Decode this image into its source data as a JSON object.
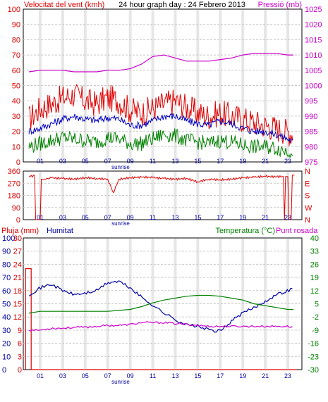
{
  "header": {
    "wind_title": "Velocitat del vent (kmh)",
    "graph_title": "24 hour graph day : 24 Febrero 2013",
    "pressure_title": "Pressió (mb)"
  },
  "colors": {
    "wind": "#e00000",
    "wind_avg": "#0000c0",
    "wind_low": "#008000",
    "pressure": "#cc00cc",
    "direction": "#e00000",
    "rain": "#e00000",
    "humidity": "#0000a0",
    "temperature": "#008000",
    "dewpoint": "#cc00cc",
    "grid": "#c8c8c8",
    "day_band": "#e6e6e6"
  },
  "x_axis": {
    "ticks": [
      "01",
      "03",
      "05",
      "07",
      "09",
      "11",
      "13",
      "15",
      "17",
      "19",
      "21",
      "23"
    ],
    "sunrise_label": "sunrise"
  },
  "bottom_panel": {
    "rain_title": "Pluja (mm)",
    "humidity_title": "Humitat",
    "temp_title": "Temperatura (°C)",
    "dew_title": "Punt rosada"
  },
  "chart_data": [
    {
      "type": "line",
      "panel": "wind",
      "title": "24 hour graph day : 24 Febrero 2013",
      "x_unit": "hour",
      "y_left_label": "Velocitat del vent (kmh)",
      "y_left_lim": [
        0,
        100
      ],
      "y_left_ticks": [
        "0",
        "10",
        "20",
        "30",
        "40",
        "50",
        "60",
        "70",
        "80",
        "90",
        "100"
      ],
      "y_right_label": "Pressió (mb)",
      "y_right_lim": [
        975,
        1025
      ],
      "y_right_ticks": [
        "975",
        "980",
        "985",
        "990",
        "995",
        "1000",
        "1005",
        "1010",
        "1015",
        "1020",
        "1025"
      ],
      "series": [
        {
          "axis": "left",
          "color": "#e00000",
          "x": [
            0,
            1,
            2,
            3,
            4,
            5,
            6,
            7,
            8,
            9,
            10,
            11,
            12,
            13,
            14,
            15,
            16,
            17,
            18,
            19,
            20,
            21,
            22,
            23,
            23.5
          ],
          "values": [
            28,
            35,
            38,
            42,
            44,
            40,
            38,
            42,
            40,
            34,
            32,
            35,
            38,
            40,
            36,
            32,
            30,
            32,
            30,
            28,
            26,
            24,
            22,
            20,
            18
          ]
        },
        {
          "axis": "left",
          "color": "#0000c0",
          "x": [
            0,
            1,
            2,
            3,
            4,
            5,
            6,
            7,
            8,
            9,
            10,
            11,
            12,
            13,
            14,
            15,
            16,
            17,
            18,
            19,
            20,
            21,
            22,
            23,
            23.5
          ],
          "values": [
            20,
            22,
            25,
            28,
            30,
            28,
            27,
            29,
            28,
            24,
            24,
            27,
            30,
            30,
            27,
            25,
            24,
            27,
            25,
            22,
            20,
            20,
            18,
            15,
            13
          ]
        },
        {
          "axis": "left",
          "color": "#008000",
          "x": [
            0,
            1,
            2,
            3,
            4,
            5,
            6,
            7,
            8,
            9,
            10,
            11,
            12,
            13,
            14,
            15,
            16,
            17,
            18,
            19,
            20,
            21,
            22,
            23,
            23.5
          ],
          "values": [
            10,
            12,
            14,
            16,
            15,
            14,
            13,
            16,
            15,
            12,
            12,
            15,
            18,
            17,
            14,
            13,
            12,
            14,
            13,
            11,
            10,
            10,
            9,
            7,
            8
          ]
        },
        {
          "axis": "right",
          "color": "#cc00cc",
          "x": [
            0,
            1,
            2,
            3,
            4,
            5,
            6,
            7,
            8,
            9,
            10,
            11,
            12,
            13,
            14,
            15,
            16,
            17,
            18,
            19,
            20,
            21,
            22,
            23,
            23.5
          ],
          "values": [
            1004.5,
            1005,
            1005,
            1005,
            1004.5,
            1004.5,
            1004.5,
            1005,
            1005,
            1005.5,
            1007,
            1009.5,
            1010,
            1009,
            1008,
            1008,
            1008,
            1008.5,
            1009,
            1010,
            1010.5,
            1010.5,
            1010.5,
            1010,
            1010
          ]
        }
      ]
    },
    {
      "type": "line",
      "panel": "direction",
      "x_unit": "hour",
      "y_left_lim": [
        0,
        360
      ],
      "y_left_ticks": [
        "0",
        "90",
        "180",
        "270",
        "360"
      ],
      "y_right_ticks": [
        "N",
        "E",
        "S",
        "W",
        "N"
      ],
      "series": [
        {
          "color": "#e00000",
          "x": [
            0,
            0.5,
            1,
            1.5,
            2,
            3,
            4,
            5,
            6,
            7,
            7.5,
            8,
            9,
            10,
            11,
            12,
            13,
            14,
            15,
            16,
            17,
            18,
            19,
            20,
            21,
            22,
            22.6,
            22.7,
            23,
            23.3,
            23.6
          ],
          "values": [
            320,
            325,
            0,
            300,
            310,
            305,
            300,
            310,
            305,
            300,
            200,
            300,
            310,
            315,
            312,
            305,
            300,
            305,
            280,
            300,
            295,
            300,
            310,
            315,
            320,
            318,
            320,
            0,
            320,
            0,
            330
          ]
        }
      ]
    },
    {
      "type": "line",
      "panel": "bottom",
      "x_unit": "hour",
      "axes": [
        {
          "name": "humidity",
          "ticks": [
            "0",
            "10",
            "20",
            "30",
            "40",
            "50",
            "60",
            "70",
            "80",
            "90",
            "100"
          ],
          "lim": [
            0,
            100
          ]
        },
        {
          "name": "rain",
          "ticks": [
            "0",
            "3",
            "6",
            "9",
            "12",
            "15",
            "18",
            "21",
            "24",
            "27",
            "30"
          ],
          "lim": [
            0,
            30
          ]
        },
        {
          "name": "temperature",
          "ticks": [
            "-30",
            "-23",
            "-16",
            "-9",
            "-2",
            "5",
            "12",
            "19",
            "26",
            "33",
            "40"
          ],
          "lim": [
            -30,
            40
          ]
        }
      ],
      "series": [
        {
          "axis": "rain",
          "color": "#e00000",
          "x": [
            -0.3,
            -0.3,
            0.2,
            0.2,
            23.8
          ],
          "values": [
            0,
            23,
            23,
            0,
            0
          ]
        },
        {
          "axis": "humidity",
          "color": "#0000a0",
          "x": [
            0,
            1,
            2,
            3,
            4,
            5,
            6,
            7,
            8,
            9,
            10,
            11,
            12,
            13,
            14,
            15,
            16,
            17,
            18,
            19,
            20,
            21,
            22,
            23,
            23.5
          ],
          "values": [
            57,
            62,
            65,
            60,
            57,
            58,
            60,
            66,
            67,
            62,
            55,
            49,
            43,
            38,
            34,
            33,
            30,
            29,
            37,
            43,
            47,
            52,
            57,
            60,
            62
          ]
        },
        {
          "axis": "temperature",
          "color": "#008000",
          "x": [
            0,
            1,
            2,
            3,
            4,
            5,
            6,
            7,
            8,
            9,
            10,
            11,
            12,
            13,
            14,
            15,
            16,
            17,
            18,
            19,
            20,
            21,
            22,
            23,
            23.5
          ],
          "values": [
            0,
            1,
            1,
            1,
            1,
            1,
            1,
            1,
            1.5,
            2,
            3.5,
            5.5,
            7,
            8,
            9,
            9.5,
            9.5,
            9,
            8,
            7,
            5,
            4,
            3,
            2,
            2
          ]
        },
        {
          "axis": "temperature",
          "color": "#cc00cc",
          "x": [
            0,
            1,
            2,
            3,
            4,
            5,
            6,
            7,
            8,
            9,
            10,
            11,
            12,
            13,
            14,
            15,
            16,
            17,
            18,
            19,
            20,
            21,
            22,
            23,
            23.5
          ],
          "values": [
            -9,
            -9,
            -8,
            -8,
            -7.5,
            -7.5,
            -7,
            -6.5,
            -6.5,
            -6,
            -5,
            -5,
            -5,
            -5.5,
            -6,
            -6.5,
            -7,
            -7,
            -7,
            -7,
            -7,
            -7,
            -7,
            -7,
            -7.5
          ]
        }
      ]
    }
  ]
}
